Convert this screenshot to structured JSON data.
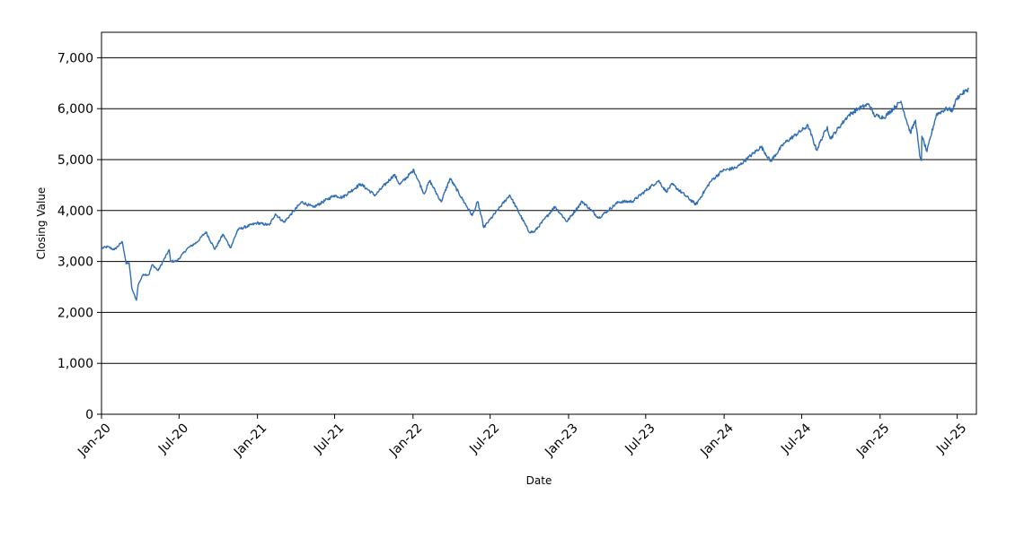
{
  "chart_data": {
    "type": "line",
    "title": "",
    "xlabel": "Date",
    "ylabel": "Closing Value",
    "ylim": [
      0,
      7500
    ],
    "xlim": [
      "2020-01-01",
      "2025-08-15"
    ],
    "grid": "horizontal",
    "legend": "none",
    "yticks": [
      {
        "value": 0,
        "label": "0"
      },
      {
        "value": 1000,
        "label": "1,000"
      },
      {
        "value": 2000,
        "label": "2,000"
      },
      {
        "value": 3000,
        "label": "3,000"
      },
      {
        "value": 4000,
        "label": "4,000"
      },
      {
        "value": 5000,
        "label": "5,000"
      },
      {
        "value": 6000,
        "label": "6,000"
      },
      {
        "value": 7000,
        "label": "7,000"
      }
    ],
    "xticks": [
      {
        "date": "2020-01-01",
        "label": "Jan-20"
      },
      {
        "date": "2020-07-01",
        "label": "Jul-20"
      },
      {
        "date": "2021-01-01",
        "label": "Jan-21"
      },
      {
        "date": "2021-07-01",
        "label": "Jul-21"
      },
      {
        "date": "2022-01-01",
        "label": "Jan-22"
      },
      {
        "date": "2022-07-01",
        "label": "Jul-22"
      },
      {
        "date": "2023-01-01",
        "label": "Jan-23"
      },
      {
        "date": "2023-07-01",
        "label": "Jul-23"
      },
      {
        "date": "2024-01-01",
        "label": "Jan-24"
      },
      {
        "date": "2024-07-01",
        "label": "Jul-24"
      },
      {
        "date": "2025-01-01",
        "label": "Jan-25"
      },
      {
        "date": "2025-07-01",
        "label": "Jul-25"
      }
    ],
    "series": [
      {
        "color": "#2f6db5",
        "points": [
          [
            "2020-01-02",
            3258
          ],
          [
            "2020-01-15",
            3290
          ],
          [
            "2020-01-31",
            3230
          ],
          [
            "2020-02-19",
            3386
          ],
          [
            "2020-02-28",
            2954
          ],
          [
            "2020-03-06",
            2972
          ],
          [
            "2020-03-12",
            2480
          ],
          [
            "2020-03-16",
            2386
          ],
          [
            "2020-03-23",
            2237
          ],
          [
            "2020-03-27",
            2541
          ],
          [
            "2020-04-08",
            2750
          ],
          [
            "2020-04-21",
            2737
          ],
          [
            "2020-04-29",
            2939
          ],
          [
            "2020-05-13",
            2820
          ],
          [
            "2020-06-08",
            3232
          ],
          [
            "2020-06-11",
            3002
          ],
          [
            "2020-06-26",
            3009
          ],
          [
            "2020-07-20",
            3251
          ],
          [
            "2020-08-12",
            3380
          ],
          [
            "2020-09-02",
            3580
          ],
          [
            "2020-09-23",
            3237
          ],
          [
            "2020-10-12",
            3534
          ],
          [
            "2020-10-30",
            3270
          ],
          [
            "2020-11-16",
            3627
          ],
          [
            "2020-12-31",
            3756
          ],
          [
            "2021-01-29",
            3714
          ],
          [
            "2021-02-12",
            3934
          ],
          [
            "2021-03-04",
            3768
          ],
          [
            "2021-04-15",
            4170
          ],
          [
            "2021-05-12",
            4063
          ],
          [
            "2021-06-30",
            4297
          ],
          [
            "2021-07-19",
            4258
          ],
          [
            "2021-08-31",
            4522
          ],
          [
            "2021-10-04",
            4300
          ],
          [
            "2021-11-18",
            4704
          ],
          [
            "2021-12-01",
            4513
          ],
          [
            "2022-01-03",
            4796
          ],
          [
            "2022-01-27",
            4326
          ],
          [
            "2022-02-09",
            4587
          ],
          [
            "2022-03-08",
            4170
          ],
          [
            "2022-03-29",
            4631
          ],
          [
            "2022-05-20",
            3901
          ],
          [
            "2022-06-02",
            4176
          ],
          [
            "2022-06-16",
            3666
          ],
          [
            "2022-07-01",
            3825
          ],
          [
            "2022-08-16",
            4305
          ],
          [
            "2022-09-30",
            3585
          ],
          [
            "2022-10-12",
            3577
          ],
          [
            "2022-11-30",
            4080
          ],
          [
            "2022-12-28",
            3783
          ],
          [
            "2023-02-02",
            4179
          ],
          [
            "2023-03-13",
            3855
          ],
          [
            "2023-04-28",
            4169
          ],
          [
            "2023-05-31",
            4180
          ],
          [
            "2023-07-31",
            4589
          ],
          [
            "2023-08-18",
            4370
          ],
          [
            "2023-09-01",
            4515
          ],
          [
            "2023-10-27",
            4117
          ],
          [
            "2023-11-30",
            4568
          ],
          [
            "2023-12-28",
            4783
          ],
          [
            "2024-01-31",
            4846
          ],
          [
            "2024-03-28",
            5254
          ],
          [
            "2024-04-19",
            4967
          ],
          [
            "2024-05-21",
            5321
          ],
          [
            "2024-07-16",
            5667
          ],
          [
            "2024-08-05",
            5186
          ],
          [
            "2024-08-30",
            5648
          ],
          [
            "2024-09-06",
            5408
          ],
          [
            "2024-10-18",
            5864
          ],
          [
            "2024-11-11",
            6001
          ],
          [
            "2024-12-06",
            6090
          ],
          [
            "2024-12-18",
            5872
          ],
          [
            "2025-01-10",
            5827
          ],
          [
            "2025-02-19",
            6144
          ],
          [
            "2025-03-13",
            5521
          ],
          [
            "2025-03-25",
            5776
          ],
          [
            "2025-04-04",
            5074
          ],
          [
            "2025-04-08",
            4983
          ],
          [
            "2025-04-09",
            5457
          ],
          [
            "2025-04-21",
            5158
          ],
          [
            "2025-05-13",
            5886
          ],
          [
            "2025-06-06",
            6000
          ],
          [
            "2025-06-20",
            5967
          ],
          [
            "2025-06-30",
            6205
          ],
          [
            "2025-07-10",
            6280
          ],
          [
            "2025-07-28",
            6389
          ]
        ]
      }
    ]
  }
}
